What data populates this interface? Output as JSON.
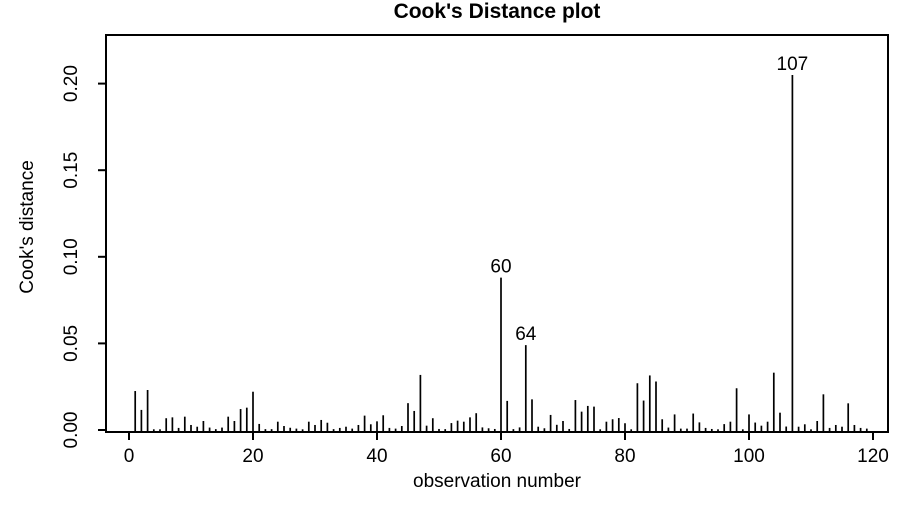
{
  "chart_data": {
    "type": "bar",
    "subtype": "spike-needle-plot",
    "title": "Cook's Distance plot",
    "xlabel": "observation number",
    "ylabel": "Cook's distance",
    "x_ticks": [
      0,
      20,
      40,
      60,
      80,
      100,
      120
    ],
    "y_ticks": [
      "0.00",
      "0.05",
      "0.10",
      "0.15",
      "0.20"
    ],
    "y_tick_values": [
      0,
      0.05,
      0.1,
      0.15,
      0.2
    ],
    "xlim": [
      -3.7,
      122.4
    ],
    "ylim": [
      0,
      0.228
    ],
    "grid": false,
    "legend": null,
    "n_observations": 119,
    "labeled_points": [
      {
        "x": 60,
        "label": "60",
        "value": 0.088
      },
      {
        "x": 64,
        "label": "64",
        "value": 0.049
      },
      {
        "x": 107,
        "label": "107",
        "value": 0.205
      }
    ],
    "values": [
      0.0225,
      0.0116,
      0.0231,
      0.0004,
      0.0004,
      0.0068,
      0.0073,
      0.0012,
      0.0077,
      0.0029,
      0.0019,
      0.0052,
      0.0014,
      0.0005,
      0.0014,
      0.0077,
      0.0052,
      0.0121,
      0.0129,
      0.0221,
      0.0035,
      0.0005,
      0.0005,
      0.0048,
      0.0023,
      0.0013,
      0.0008,
      0.0004,
      0.0048,
      0.0029,
      0.0058,
      0.0042,
      0.0005,
      0.0012,
      0.0019,
      0.0008,
      0.0029,
      0.0083,
      0.0033,
      0.005,
      0.0085,
      0.0012,
      0.0008,
      0.0023,
      0.0155,
      0.011,
      0.0318,
      0.0025,
      0.0068,
      0.0006,
      0.0005,
      0.004,
      0.0054,
      0.0048,
      0.0073,
      0.0097,
      0.0015,
      0.001,
      0.0006,
      0.088,
      0.0168,
      0.0005,
      0.0015,
      0.049,
      0.0177,
      0.0019,
      0.001,
      0.0087,
      0.003,
      0.0052,
      0.0006,
      0.0173,
      0.0106,
      0.0139,
      0.0135,
      0.0004,
      0.0048,
      0.0062,
      0.0069,
      0.0039,
      0.0004,
      0.027,
      0.017,
      0.0315,
      0.028,
      0.0062,
      0.0014,
      0.009,
      0.0008,
      0.0008,
      0.0095,
      0.0044,
      0.0012,
      0.0006,
      0.0004,
      0.0034,
      0.0048,
      0.0241,
      0.0004,
      0.009,
      0.0043,
      0.0025,
      0.0048,
      0.0331,
      0.01,
      0.002,
      0.205,
      0.0019,
      0.0033,
      0.0004,
      0.0052,
      0.0206,
      0.0012,
      0.0029,
      0.0019,
      0.0154,
      0.0029,
      0.0012,
      0.0008
    ],
    "axis_color": "#000000",
    "spike_color": "#000000",
    "background_color": "#ffffff"
  }
}
